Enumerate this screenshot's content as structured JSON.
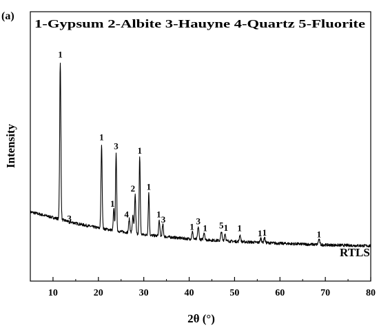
{
  "panel_label": "(a)",
  "chart_data": {
    "type": "line",
    "title": "1-Gypsum 2-Albite 3-Hauyne 4-Quartz 5-Fluorite",
    "xlabel": "2θ (°)",
    "ylabel": "Intensity",
    "xlim": [
      5,
      80
    ],
    "ylim": [
      0,
      100
    ],
    "x_ticks": [
      10,
      20,
      30,
      40,
      50,
      60,
      70,
      80
    ],
    "y_ticks_shown": false,
    "grid": false,
    "series": [
      {
        "name": "RTLS",
        "color": "#000000",
        "baseline": [
          [
            5,
            20.5
          ],
          [
            10,
            17.6
          ],
          [
            15,
            14.6
          ],
          [
            20,
            12.2
          ],
          [
            25,
            10.3
          ],
          [
            30,
            8.7
          ],
          [
            40,
            6.5
          ],
          [
            50,
            5.2
          ],
          [
            60,
            4.2
          ],
          [
            70,
            3.4
          ],
          [
            80,
            2.9
          ]
        ],
        "peaks": [
          {
            "x": 11.6,
            "y": 98.3,
            "w": 0.13
          },
          {
            "x": 13.6,
            "y": 14.9,
            "w": 0.15
          },
          {
            "x": 20.7,
            "y": 55.4,
            "w": 0.13
          },
          {
            "x": 23.4,
            "y": 22.0,
            "w": 0.12
          },
          {
            "x": 23.9,
            "y": 51.7,
            "w": 0.12
          },
          {
            "x": 26.8,
            "y": 16.8,
            "w": 0.14
          },
          {
            "x": 27.6,
            "y": 18.3,
            "w": 0.14
          },
          {
            "x": 28.1,
            "y": 29.5,
            "w": 0.13
          },
          {
            "x": 29.1,
            "y": 49.5,
            "w": 0.12
          },
          {
            "x": 31.1,
            "y": 30.7,
            "w": 0.12
          },
          {
            "x": 33.4,
            "y": 16.0,
            "w": 0.13
          },
          {
            "x": 34.2,
            "y": 14.0,
            "w": 0.13
          },
          {
            "x": 40.7,
            "y": 10.3,
            "w": 0.14
          },
          {
            "x": 42.0,
            "y": 12.8,
            "w": 0.14
          },
          {
            "x": 43.3,
            "y": 10.0,
            "w": 0.14
          },
          {
            "x": 47.1,
            "y": 10.3,
            "w": 0.14
          },
          {
            "x": 47.9,
            "y": 9.3,
            "w": 0.14
          },
          {
            "x": 51.2,
            "y": 8.6,
            "w": 0.14
          },
          {
            "x": 55.8,
            "y": 6.9,
            "w": 0.14
          },
          {
            "x": 56.6,
            "y": 7.2,
            "w": 0.14
          },
          {
            "x": 68.6,
            "y": 6.3,
            "w": 0.16
          }
        ]
      }
    ],
    "peak_labels": [
      {
        "x": 11.6,
        "y": 100.5,
        "text": "1"
      },
      {
        "x": 13.6,
        "y": 15.6,
        "text": "3"
      },
      {
        "x": 20.7,
        "y": 57.7,
        "text": "1"
      },
      {
        "x": 23.1,
        "y": 23.2,
        "text": "1"
      },
      {
        "x": 23.9,
        "y": 53.0,
        "text": "3"
      },
      {
        "x": 26.2,
        "y": 17.6,
        "text": "4"
      },
      {
        "x": 27.6,
        "y": 31.0,
        "text": "2"
      },
      {
        "x": 29.1,
        "y": 50.8,
        "text": "1"
      },
      {
        "x": 31.1,
        "y": 32.0,
        "text": "1"
      },
      {
        "x": 33.3,
        "y": 17.6,
        "text": "1"
      },
      {
        "x": 34.3,
        "y": 15.0,
        "text": "3"
      },
      {
        "x": 40.6,
        "y": 11.2,
        "text": "1"
      },
      {
        "x": 42.0,
        "y": 14.1,
        "text": "3"
      },
      {
        "x": 43.5,
        "y": 10.5,
        "text": "1"
      },
      {
        "x": 47.1,
        "y": 12.0,
        "text": "5"
      },
      {
        "x": 48.1,
        "y": 10.7,
        "text": "1"
      },
      {
        "x": 51.1,
        "y": 10.5,
        "text": "1"
      },
      {
        "x": 55.6,
        "y": 7.8,
        "text": "1"
      },
      {
        "x": 56.6,
        "y": 8.2,
        "text": "1"
      },
      {
        "x": 68.6,
        "y": 7.4,
        "text": "1"
      }
    ],
    "series_label": {
      "x": 76.5,
      "y": -2.5,
      "text": "RTLS"
    }
  }
}
